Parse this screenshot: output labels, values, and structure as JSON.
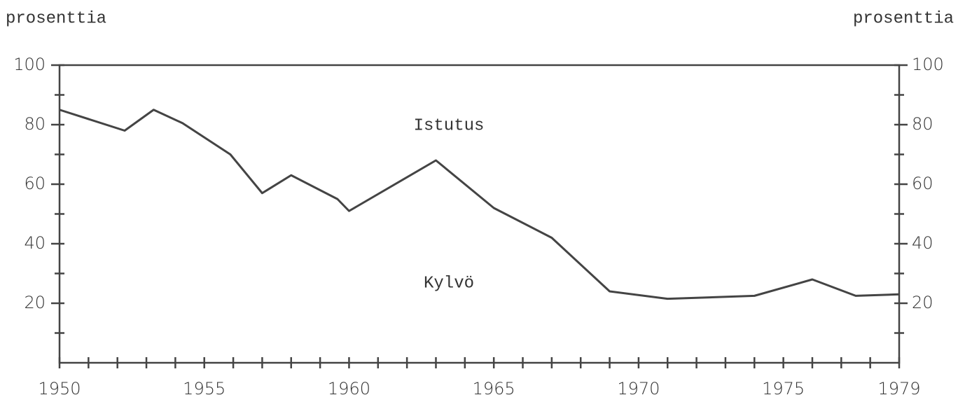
{
  "chart_data": {
    "type": "line",
    "ylabel": "prosenttia",
    "annotations": [
      "Istutus",
      "Kylvö"
    ],
    "x": [
      1950,
      1952.25,
      1953.25,
      1954.25,
      1955.9,
      1957,
      1958,
      1959.6,
      1960,
      1963,
      1965,
      1967,
      1969,
      1971,
      1974,
      1976,
      1977.5,
      1979
    ],
    "series": [
      {
        "color": "#444",
        "values": [
          85,
          78,
          85,
          80.5,
          70,
          57,
          63,
          55,
          51,
          68,
          52,
          42,
          24,
          21.5,
          22.5,
          28,
          22.5,
          23
        ]
      }
    ],
    "xlim": [
      1950,
      1979
    ],
    "xticks": [
      1950,
      1955,
      1960,
      1965,
      1970,
      1975,
      1979
    ],
    "xminorticks": [
      1950,
      1951,
      1952,
      1953,
      1954,
      1955,
      1956,
      1957,
      1958,
      1959,
      1960,
      1961,
      1962,
      1963,
      1964,
      1965,
      1966,
      1967,
      1968,
      1969,
      1970,
      1971,
      1972,
      1973,
      1974,
      1975,
      1976,
      1977,
      1978,
      1979
    ],
    "ylim": [
      0,
      100
    ],
    "yticks": [
      20,
      40,
      60,
      80,
      100
    ],
    "yminorticks": [
      10,
      30,
      50,
      70,
      90
    ]
  }
}
